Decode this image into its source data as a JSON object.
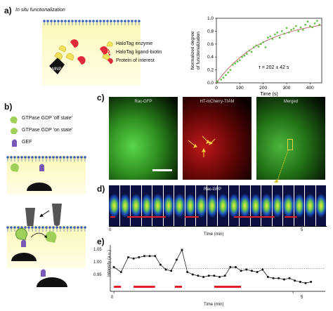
{
  "panels": {
    "a": {
      "label": "a)",
      "title": "In situ functionalization",
      "bead_label": "MNP",
      "legend": [
        {
          "icon": "halotag-enzyme-icon",
          "text": "HaloTag enzyme",
          "color": "#f1e25c"
        },
        {
          "icon": "halotag-ligand-biotin-icon",
          "text": "HaloTag ligand-biotin",
          "color": "#c03030"
        },
        {
          "icon": "protein-of-interest-icon",
          "text": "Protein of interest",
          "color": "#e02a3a"
        }
      ]
    },
    "b": {
      "label": "b)",
      "legend": [
        {
          "icon": "gtpase-off-icon",
          "text": "GTPase GDP 'off state'",
          "color": "#9ed05a"
        },
        {
          "icon": "gtpase-on-icon",
          "text": "GTPase GDP 'on state'",
          "color": "#9ed05a"
        },
        {
          "icon": "gef-icon",
          "text": "GEF",
          "color": "#7a58b8"
        }
      ]
    },
    "c": {
      "label": "c)",
      "images": [
        {
          "title": "Rac-GFP"
        },
        {
          "title": "HT-mCherry-TIAM"
        },
        {
          "title": "Merged"
        }
      ]
    },
    "d": {
      "label": "d)",
      "strip_label": "Rac-GFP",
      "ticks": [
        "0",
        "5"
      ],
      "xlabel": "Time (min)"
    },
    "e": {
      "label": "e)",
      "ylabel": "Intensity (a.u.)",
      "yticks": [
        "1.05",
        "1.00",
        "0.95"
      ],
      "xticks": [
        "0",
        "5"
      ],
      "xlabel": "Time (min)"
    }
  },
  "chart_data": [
    {
      "type": "scatter",
      "panel": "a",
      "title": "",
      "xlabel": "Time (s)",
      "ylabel": "Normalized degree of functionalization",
      "xlim": [
        0,
        450
      ],
      "ylim": [
        0,
        1.0
      ],
      "xticks": [
        0,
        100,
        200,
        300,
        400
      ],
      "yticks": [
        0,
        0.2,
        0.4,
        0.6,
        0.8,
        1.0
      ],
      "annotation": "τ = 202 ± 42 s",
      "x": [
        5,
        20,
        30,
        40,
        50,
        60,
        70,
        80,
        90,
        100,
        110,
        120,
        130,
        140,
        150,
        160,
        170,
        180,
        190,
        200,
        210,
        220,
        230,
        240,
        250,
        260,
        270,
        280,
        290,
        300,
        310,
        320,
        330,
        340,
        350,
        360,
        370,
        380,
        390,
        400,
        410,
        420,
        430,
        440
      ],
      "y": [
        0.02,
        0.05,
        0.08,
        0.12,
        0.16,
        0.2,
        0.28,
        0.3,
        0.33,
        0.35,
        0.4,
        0.42,
        0.45,
        0.5,
        0.48,
        0.55,
        0.58,
        0.56,
        0.6,
        0.63,
        0.55,
        0.7,
        0.72,
        0.68,
        0.75,
        0.78,
        0.7,
        0.8,
        0.76,
        0.85,
        0.78,
        0.82,
        0.84,
        0.88,
        0.8,
        0.86,
        0.82,
        0.9,
        0.95,
        0.88,
        0.86,
        0.92,
        0.96,
        0.9
      ],
      "fit_tau": 202
    },
    {
      "type": "line",
      "panel": "e",
      "title": "",
      "xlabel": "Time (min)",
      "ylabel": "Intensity (a.u.)",
      "xlim": [
        -0.1,
        5.9
      ],
      "ylim": [
        0.92,
        1.08
      ],
      "reference_line": 0.985,
      "x": [
        0,
        0.2,
        0.4,
        0.55,
        0.7,
        0.85,
        1.0,
        1.15,
        1.3,
        1.45,
        1.6,
        1.75,
        1.9,
        2.05,
        2.2,
        2.35,
        2.5,
        2.65,
        2.8,
        2.95,
        3.1,
        3.25,
        3.4,
        3.55,
        3.7,
        3.85,
        4.0,
        4.15,
        4.3,
        4.45,
        4.6,
        4.75,
        4.9,
        5.05,
        5.2,
        5.35,
        5.5
      ],
      "y": [
        0.99,
        0.97,
        1.03,
        1.025,
        1.03,
        1.035,
        1.035,
        1.035,
        1.0,
        0.98,
        0.975,
        1.02,
        1.06,
        0.97,
        0.96,
        0.955,
        0.95,
        0.955,
        0.955,
        0.95,
        0.955,
        0.99,
        0.99,
        0.975,
        0.98,
        0.975,
        0.97,
        0.98,
        0.95,
        0.945,
        0.945,
        0.94,
        0.945,
        0.935,
        0.93,
        0.925,
        0.93
      ]
    }
  ]
}
